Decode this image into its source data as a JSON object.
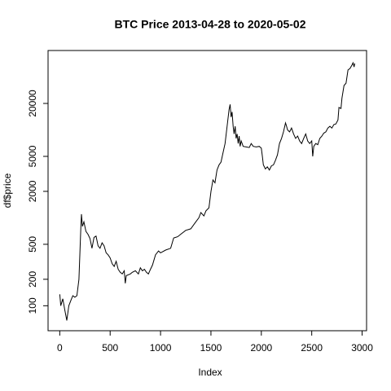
{
  "chart_data": {
    "type": "line",
    "title": "BTC Price 2013-04-28 to 2020-05-02",
    "x_label": "Index",
    "y_label": "df$price",
    "y_log": true,
    "color": "#000000",
    "xlim": [
      -116,
      3044
    ],
    "xticks": [
      0,
      500,
      1000,
      1500,
      2000,
      2500,
      3000
    ],
    "ylim": [
      52,
      80000
    ],
    "yticks": [
      100,
      200,
      500,
      2000,
      5000,
      20000
    ],
    "x": [
      0,
      10,
      30,
      50,
      70,
      90,
      110,
      130,
      150,
      170,
      190,
      200,
      210,
      215,
      225,
      240,
      260,
      280,
      300,
      320,
      340,
      360,
      380,
      400,
      420,
      440,
      460,
      480,
      500,
      520,
      540,
      560,
      580,
      600,
      620,
      640,
      650,
      660,
      700,
      720,
      750,
      780,
      800,
      820,
      840,
      860,
      880,
      900,
      920,
      950,
      980,
      1000,
      1050,
      1100,
      1130,
      1150,
      1170,
      1200,
      1250,
      1300,
      1350,
      1380,
      1400,
      1430,
      1450,
      1480,
      1500,
      1520,
      1540,
      1560,
      1580,
      1600,
      1620,
      1640,
      1660,
      1680,
      1690,
      1700,
      1710,
      1720,
      1730,
      1740,
      1750,
      1760,
      1770,
      1780,
      1790,
      1800,
      1820,
      1850,
      1880,
      1900,
      1920,
      1950,
      1980,
      2000,
      2010,
      2020,
      2040,
      2060,
      2080,
      2100,
      2120,
      2140,
      2160,
      2180,
      2200,
      2220,
      2240,
      2250,
      2260,
      2280,
      2300,
      2320,
      2340,
      2360,
      2380,
      2400,
      2420,
      2440,
      2460,
      2480,
      2500,
      2510,
      2520,
      2540,
      2560,
      2580,
      2600,
      2620,
      2640,
      2660,
      2680,
      2700,
      2720,
      2740,
      2760,
      2770,
      2790,
      2800,
      2820,
      2840,
      2860,
      2880,
      2900,
      2910,
      2920,
      2927
    ],
    "series": [
      {
        "name": "df$price",
        "values": [
          135,
          100,
          120,
          90,
          68,
          100,
          115,
          130,
          125,
          130,
          200,
          400,
          800,
          1100,
          800,
          900,
          700,
          650,
          580,
          450,
          600,
          620,
          480,
          450,
          520,
          480,
          400,
          380,
          350,
          300,
          280,
          320,
          260,
          240,
          230,
          250,
          180,
          220,
          230,
          240,
          250,
          230,
          270,
          250,
          260,
          240,
          230,
          260,
          290,
          380,
          420,
          400,
          430,
          450,
          590,
          600,
          610,
          650,
          720,
          750,
          900,
          1000,
          1150,
          1050,
          1200,
          1300,
          2000,
          2700,
          2500,
          3500,
          4000,
          4300,
          5500,
          7000,
          11000,
          17000,
          19500,
          14000,
          16000,
          11000,
          9000,
          11000,
          8000,
          9000,
          7000,
          8500,
          6500,
          7500,
          6500,
          6400,
          6300,
          7000,
          6500,
          6400,
          6500,
          6200,
          5000,
          4000,
          3600,
          3800,
          3500,
          3900,
          4000,
          4500,
          5200,
          7000,
          8000,
          9500,
          12000,
          11000,
          10000,
          9500,
          10500,
          9000,
          8000,
          8500,
          7500,
          7000,
          8000,
          9000,
          7500,
          7000,
          7500,
          5000,
          6500,
          7000,
          6800,
          8000,
          8500,
          9200,
          9500,
          10500,
          11000,
          10500,
          11500,
          11700,
          13000,
          18000,
          17500,
          23000,
          32000,
          34000,
          48000,
          50000,
          55000,
          58000,
          52000,
          57000
        ]
      }
    ]
  }
}
